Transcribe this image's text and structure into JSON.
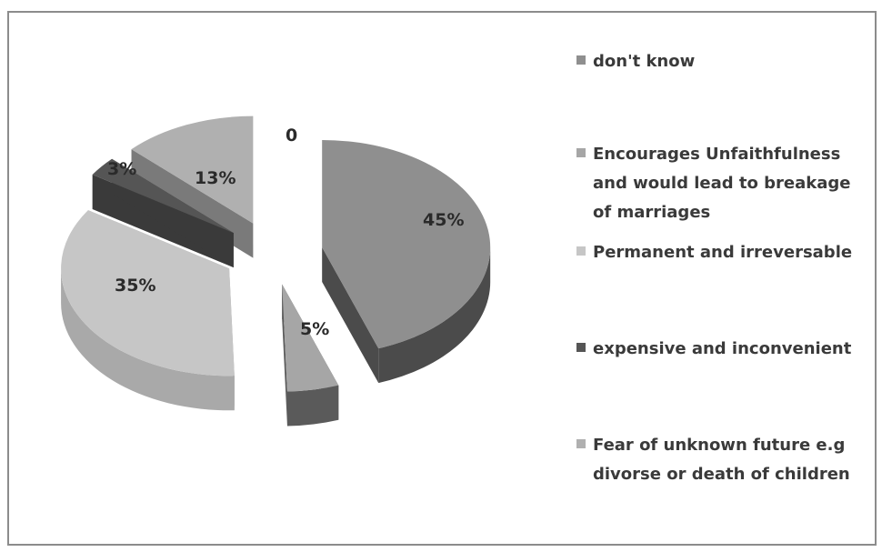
{
  "chart_data": {
    "type": "pie",
    "variant": "3d-exploded",
    "legend_position": "right",
    "categories": [
      "don't know",
      "Encourages Unfaithfulness and would lead to breakage of marriages",
      "Permanent and irreversable",
      "expensive and inconvenient",
      "Fear of unknown future e.g divorse or death of children"
    ],
    "values": [
      45,
      5,
      35,
      3,
      13
    ],
    "labels": [
      "45%",
      "5%",
      "35%",
      "3%",
      "13%"
    ],
    "extra_label": "0",
    "colors": [
      "#8f8f8f",
      "#a6a6a6",
      "#c6c6c6",
      "#555555",
      "#b0b0b0"
    ],
    "side_colors": [
      "#4b4b4b",
      "#5a5a5a",
      "#a9a9a9",
      "#3a3a3a",
      "#7a7a7a"
    ]
  }
}
